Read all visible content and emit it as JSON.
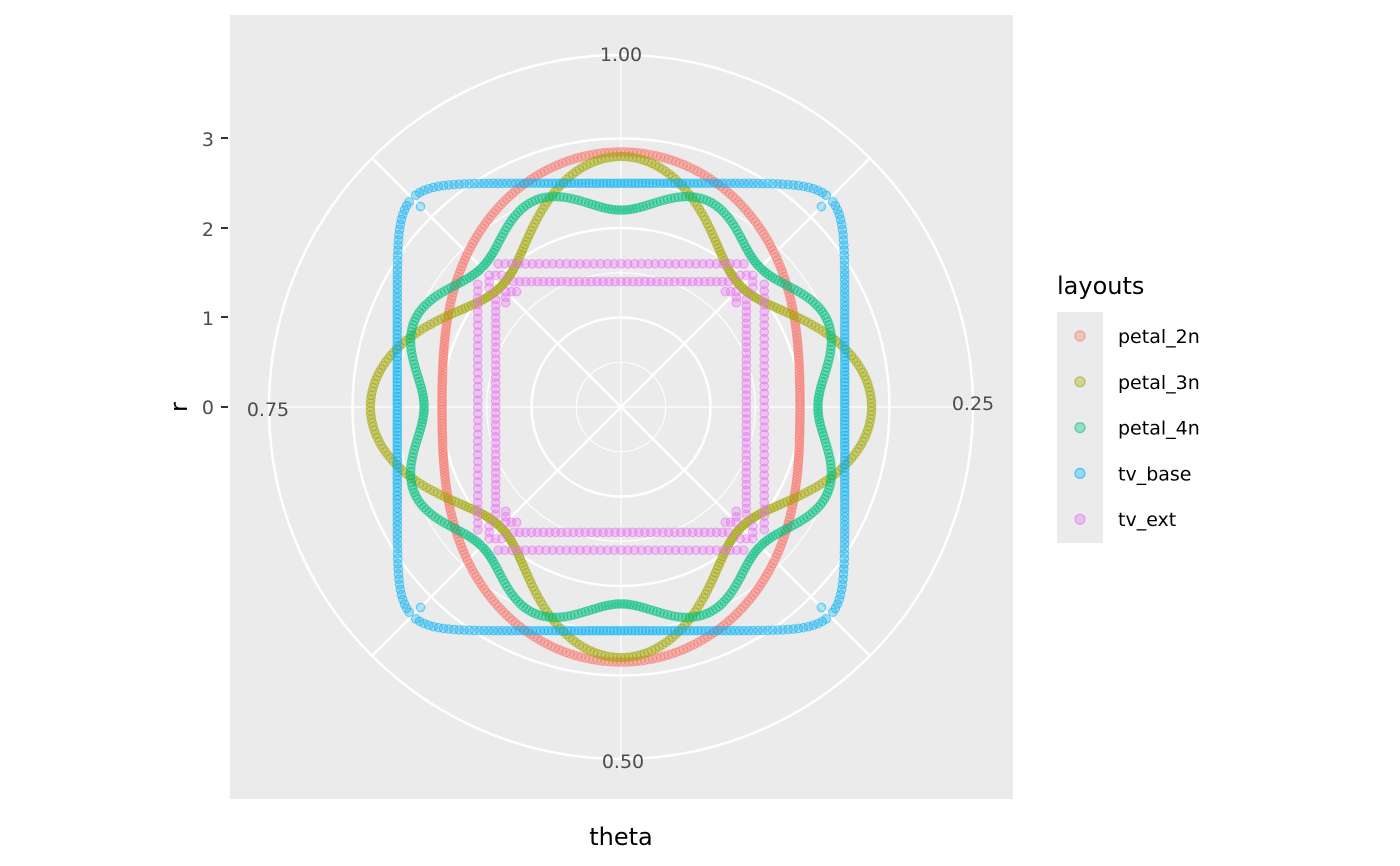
{
  "chart_data": {
    "type": "scatter",
    "coord": "polar",
    "xlabel": "theta",
    "ylabel": "r",
    "theta_ticks": [
      "1.00",
      "0.25",
      "0.50",
      "0.75"
    ],
    "r_ticks": [
      "0",
      "1",
      "2",
      "3"
    ],
    "r_range": [
      0,
      3.25
    ],
    "grid": true,
    "legend": {
      "title": "layouts",
      "placement": "right",
      "entries": [
        "petal_2n",
        "petal_3n",
        "petal_4n",
        "tv_base",
        "tv_ext"
      ]
    },
    "series": [
      {
        "name": "petal_2n",
        "color": "#F8766D",
        "shape": "petal",
        "r0": 2.425,
        "amp": 0.425,
        "k": 2,
        "phase": 0
      },
      {
        "name": "petal_3n",
        "color": "#A3A500",
        "shape": "petal",
        "r0": 2.35,
        "amp": 0.45,
        "k": 4,
        "phase": 0
      },
      {
        "name": "petal_4n",
        "color": "#00BF7D",
        "shape": "petal",
        "r0": 2.35,
        "amp": 0.15,
        "k": 8,
        "phase": 3.14159
      },
      {
        "name": "tv_base",
        "color": "#00B0F6",
        "shape": "superellipse",
        "r": 2.5,
        "exponent": 10,
        "cut": 0.96
      },
      {
        "name": "tv_ext",
        "color": "#E76BF3",
        "shape": "square_rings",
        "half_widths": [
          1.4,
          1.6
        ],
        "gap": 0.92
      }
    ]
  }
}
